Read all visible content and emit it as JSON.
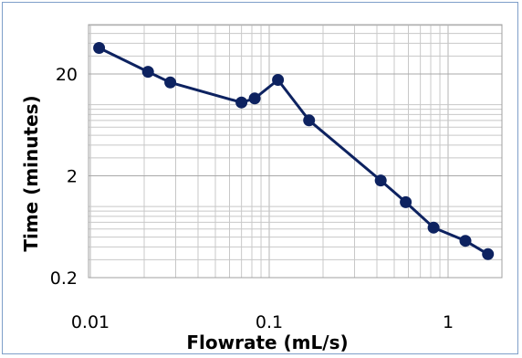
{
  "chart_data": {
    "type": "line",
    "title": "",
    "xlabel": "Flowrate (mL/s)",
    "ylabel": "Time (minutes)",
    "x_scale": "log",
    "y_scale": "log",
    "xlim": [
      0.01,
      2
    ],
    "ylim": [
      0.2,
      50
    ],
    "x_ticks": [
      {
        "value": 0.01,
        "label": "0.01"
      },
      {
        "value": 0.1,
        "label": "0.1"
      },
      {
        "value": 1,
        "label": "1"
      }
    ],
    "y_ticks": [
      {
        "value": 0.2,
        "label": "0.2"
      },
      {
        "value": 2,
        "label": "2"
      },
      {
        "value": 20,
        "label": "20"
      }
    ],
    "grid": true,
    "legend": "none",
    "line_color": "#0d2260",
    "marker_color": "#0d2260",
    "grid_color": "#c8c8c8",
    "frame_color": "#7f9fc9",
    "series": [
      {
        "x": [
          0.0112,
          0.021,
          0.028,
          0.07,
          0.083,
          0.112,
          0.167,
          0.42,
          0.58,
          0.83,
          1.25,
          1.67
        ],
        "y": [
          36,
          21,
          16.5,
          10.5,
          11.5,
          17.5,
          7.0,
          1.8,
          1.1,
          0.62,
          0.46,
          0.34
        ]
      }
    ]
  }
}
